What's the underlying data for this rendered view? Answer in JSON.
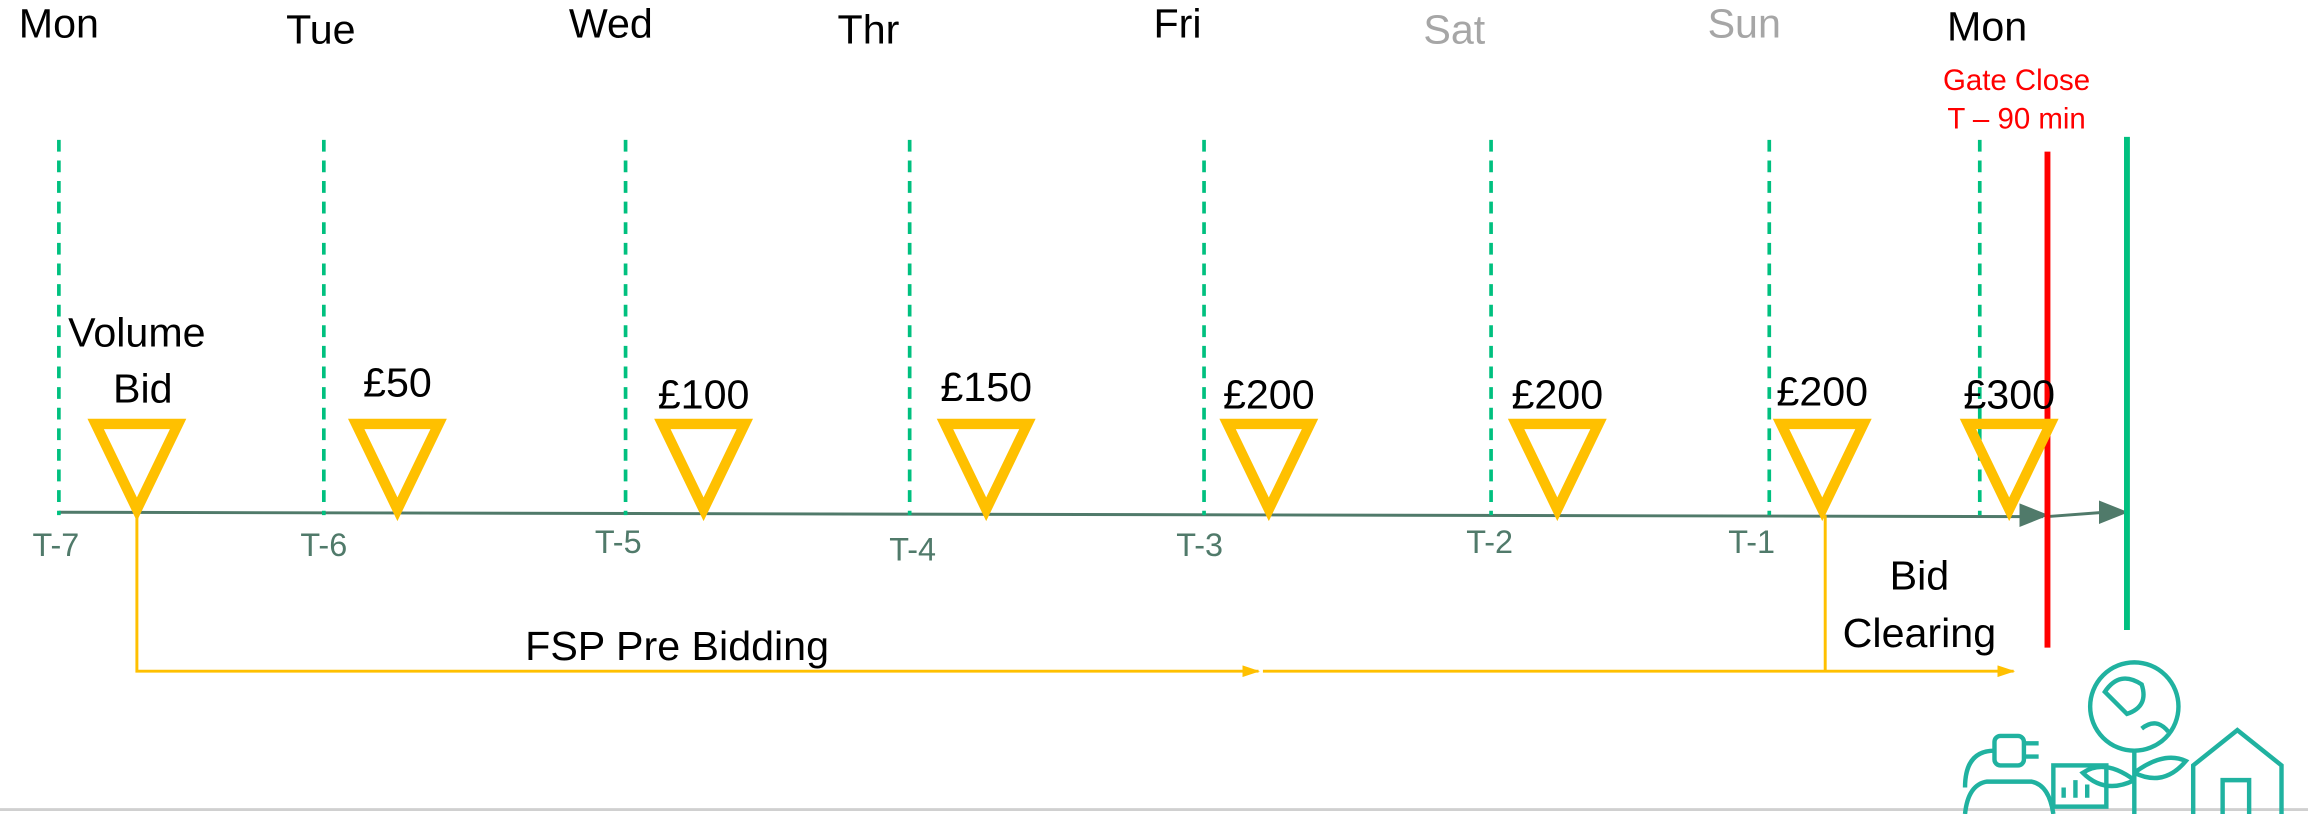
{
  "days": [
    {
      "label": "Mon",
      "color": "#000000"
    },
    {
      "label": "Tue",
      "color": "#000000"
    },
    {
      "label": "Wed",
      "color": "#000000"
    },
    {
      "label": "Thr",
      "color": "#000000"
    },
    {
      "label": "Fri",
      "color": "#000000"
    },
    {
      "label": "Sat",
      "color": "#a6a6a6"
    },
    {
      "label": "Sun",
      "color": "#a6a6a6"
    },
    {
      "label": "Mon",
      "color": "#000000"
    }
  ],
  "t_labels": [
    "T-7",
    "T-6",
    "T-5",
    "T-4",
    "T-3",
    "T-2",
    "T-1"
  ],
  "volume_bid": [
    "Volume",
    "Bid"
  ],
  "bids": [
    "£50",
    "£100",
    "£150",
    "£200",
    "£200",
    "£200",
    "£300"
  ],
  "gate_close": [
    "Gate Close",
    "T – 90 min"
  ],
  "pre_bidding": "FSP Pre Bidding",
  "bid_clearing": [
    "Bid",
    "Clearing"
  ]
}
